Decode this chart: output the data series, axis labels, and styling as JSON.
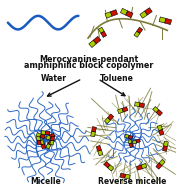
{
  "title_line1": "Merocyanine-pendant",
  "title_line2": "amphiphilic block copolymer",
  "label_water": "Water",
  "label_toluene": "Toluene",
  "label_micelle": "Micelle",
  "label_reverse": "Reverse micelle",
  "bg_color": "#ffffff",
  "blue_color": "#1a5bbf",
  "olive_color": "#7a7a3a",
  "red_color": "#cc1100",
  "yellow_color": "#dddd00",
  "green_color": "#88aa00",
  "dark_color": "#111111",
  "text_color": "#111111",
  "arrow_color": "#222222"
}
